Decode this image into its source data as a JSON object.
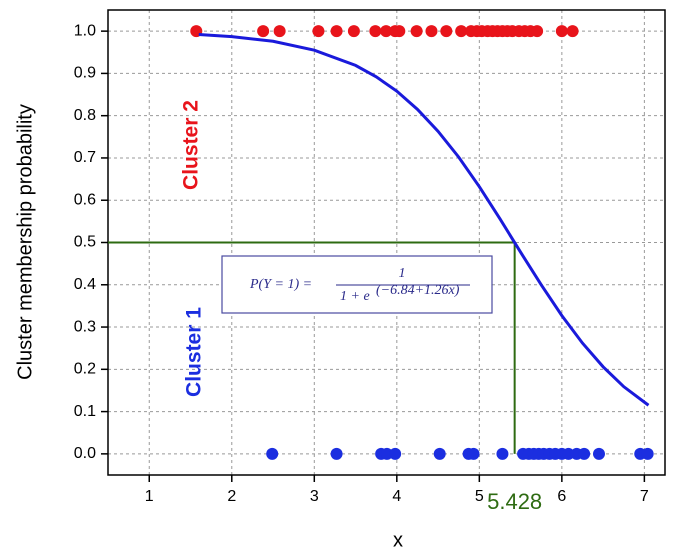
{
  "chart_data": {
    "type": "scatter",
    "x_label": "x",
    "y_label": "Cluster membership probability",
    "xlim": [
      0.5,
      7.25
    ],
    "ylim": [
      -0.05,
      1.05
    ],
    "xticks": [
      1,
      2,
      3,
      4,
      5,
      6,
      7
    ],
    "yticks": [
      {
        "value": 0,
        "label": "0.0"
      },
      0.1,
      0.2,
      0.3,
      0.4,
      0.5,
      0.6,
      0.7,
      0.8,
      0.9,
      {
        "value": 1,
        "label": "1.0"
      }
    ],
    "grid": true,
    "series": [
      {
        "type": "scatter",
        "color": "#e8141b",
        "x": [
          1.57,
          2.38,
          2.58,
          3.05,
          3.27,
          3.48,
          3.74,
          3.87,
          3.98,
          4.03,
          4.24,
          4.42,
          4.6,
          4.78,
          4.9,
          4.97,
          5.03,
          5.1,
          5.16,
          5.22,
          5.28,
          5.34,
          5.4,
          5.48,
          5.55,
          5.62,
          5.7,
          6.0,
          6.13
        ],
        "values": [
          1,
          1,
          1,
          1,
          1,
          1,
          1,
          1,
          1,
          1,
          1,
          1,
          1,
          1,
          1,
          1,
          1,
          1,
          1,
          1,
          1,
          1,
          1,
          1,
          1,
          1,
          1,
          1,
          1
        ]
      },
      {
        "type": "scatter",
        "color": "#1b2ee0",
        "x": [
          2.49,
          3.27,
          3.81,
          3.88,
          3.98,
          4.52,
          4.87,
          4.93,
          5.28,
          5.53,
          5.6,
          5.66,
          5.72,
          5.78,
          5.85,
          5.92,
          6.0,
          6.08,
          6.18,
          6.27,
          6.45,
          6.95,
          7.04
        ],
        "values": [
          0,
          0,
          0,
          0,
          0,
          0,
          0,
          0,
          0,
          0,
          0,
          0,
          0,
          0,
          0,
          0,
          0,
          0,
          0,
          0,
          0,
          0,
          0
        ]
      },
      {
        "type": "line",
        "color": "#1a1adb",
        "x": [
          1.6,
          2.0,
          2.5,
          3.0,
          3.5,
          3.75,
          4.0,
          4.25,
          4.5,
          4.75,
          5.0,
          5.25,
          5.5,
          5.75,
          6.0,
          6.25,
          6.5,
          6.75,
          7.05
        ],
        "values": [
          0.992,
          0.987,
          0.976,
          0.955,
          0.919,
          0.892,
          0.858,
          0.815,
          0.763,
          0.702,
          0.632,
          0.556,
          0.477,
          0.4,
          0.327,
          0.262,
          0.206,
          0.159,
          0.115
        ]
      }
    ],
    "threshold": {
      "x": 5.428,
      "y": 0.5,
      "color": "#2e6b12"
    },
    "cluster_labels": [
      {
        "text": "Cluster 2",
        "color": "#e8141b"
      },
      {
        "text": "Cluster 1",
        "color": "#1b2ee0"
      }
    ],
    "equation": {
      "lhs": "P(Y = 1) =",
      "numerator": "1",
      "denominator": "1 + e",
      "exponent": "(−6.84+1.26x)"
    }
  }
}
